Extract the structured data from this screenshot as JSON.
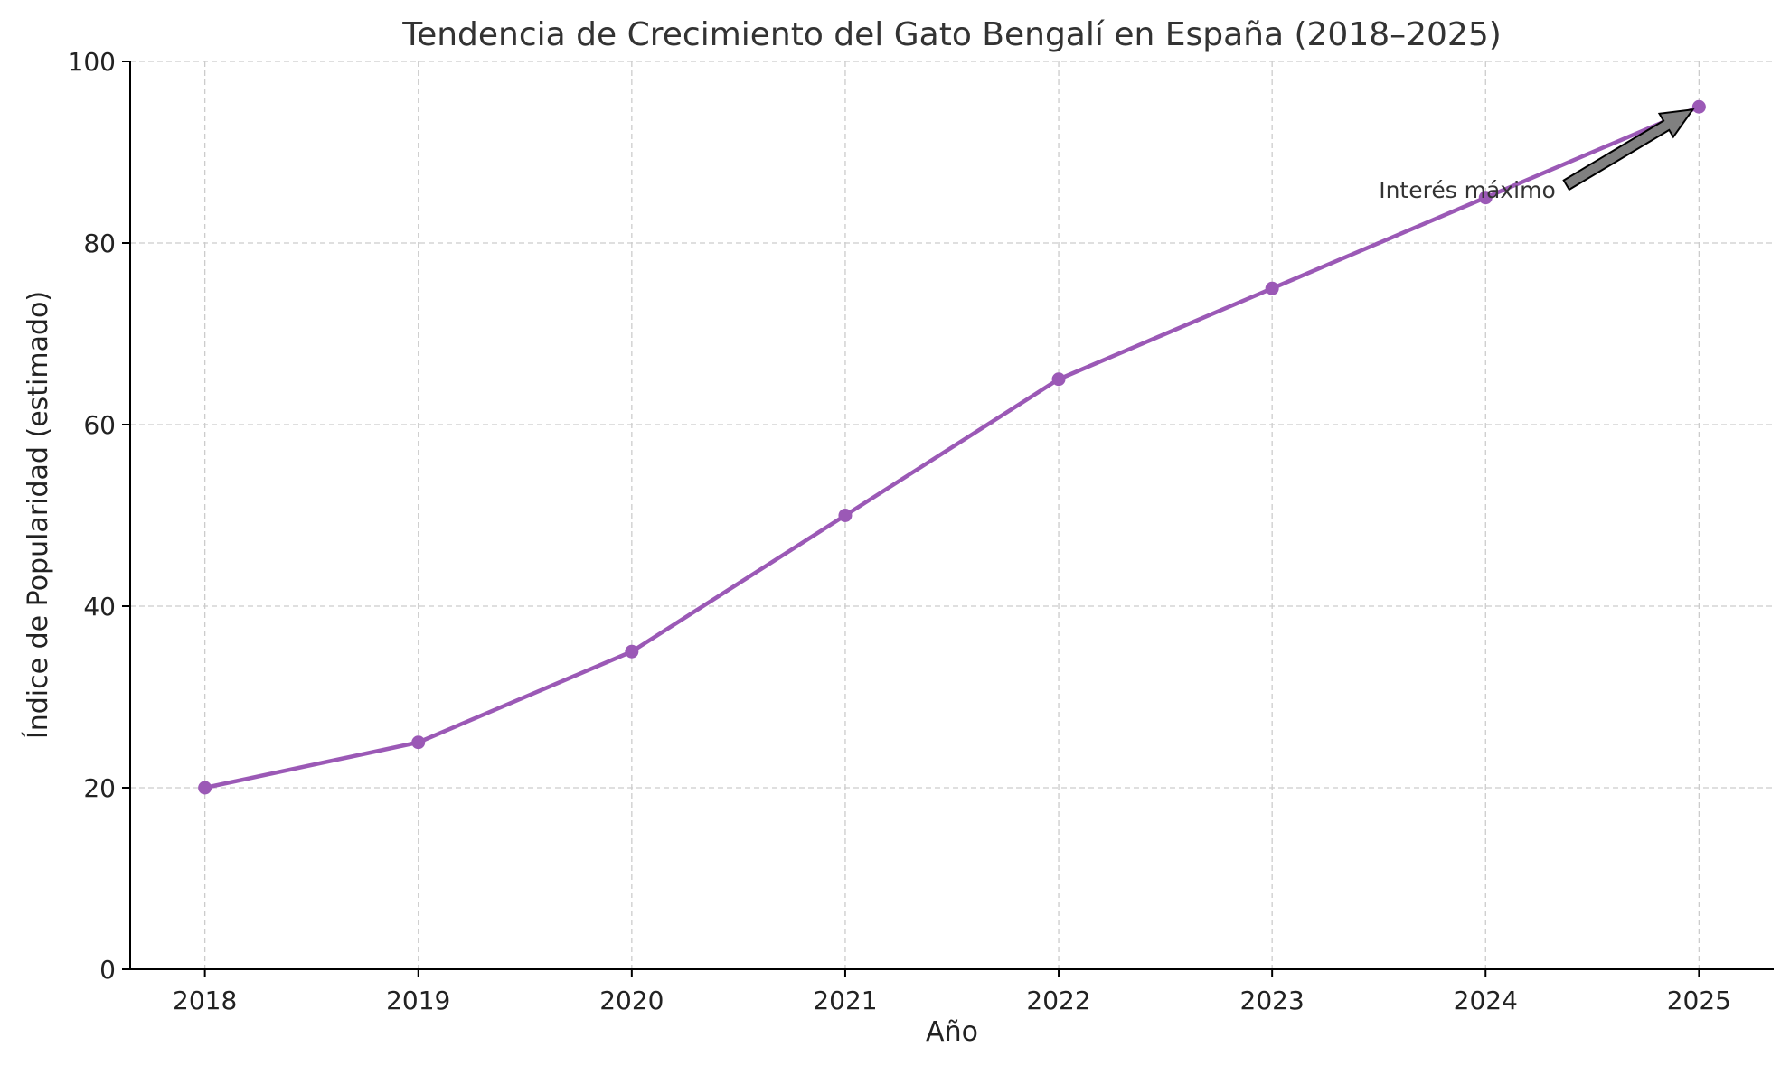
{
  "chart_data": {
    "type": "line",
    "title": "Tendencia de Crecimiento del Gato Bengalí en España (2018–2025)",
    "xlabel": "Año",
    "ylabel": "Índice de Popularidad (estimado)",
    "x": [
      2018,
      2019,
      2020,
      2021,
      2022,
      2023,
      2024,
      2025
    ],
    "x_ticks": [
      "2018",
      "2019",
      "2020",
      "2021",
      "2022",
      "2023",
      "2024",
      "2025"
    ],
    "xlim": [
      2017.65,
      2025.35
    ],
    "ylim": [
      0,
      100
    ],
    "y_ticks": [
      "0",
      "20",
      "40",
      "60",
      "80",
      "100"
    ],
    "grid": true,
    "series": [
      {
        "values": [
          20,
          25,
          35,
          50,
          65,
          75,
          85,
          95
        ],
        "color": "#9b59b6",
        "marker": "circle"
      }
    ],
    "annotations": [
      {
        "text": "Interés máximo",
        "text_x": 2023.5,
        "text_y": 85,
        "arrow_to_x": 2025,
        "arrow_to_y": 95,
        "arrow_color": "#808080"
      }
    ]
  }
}
